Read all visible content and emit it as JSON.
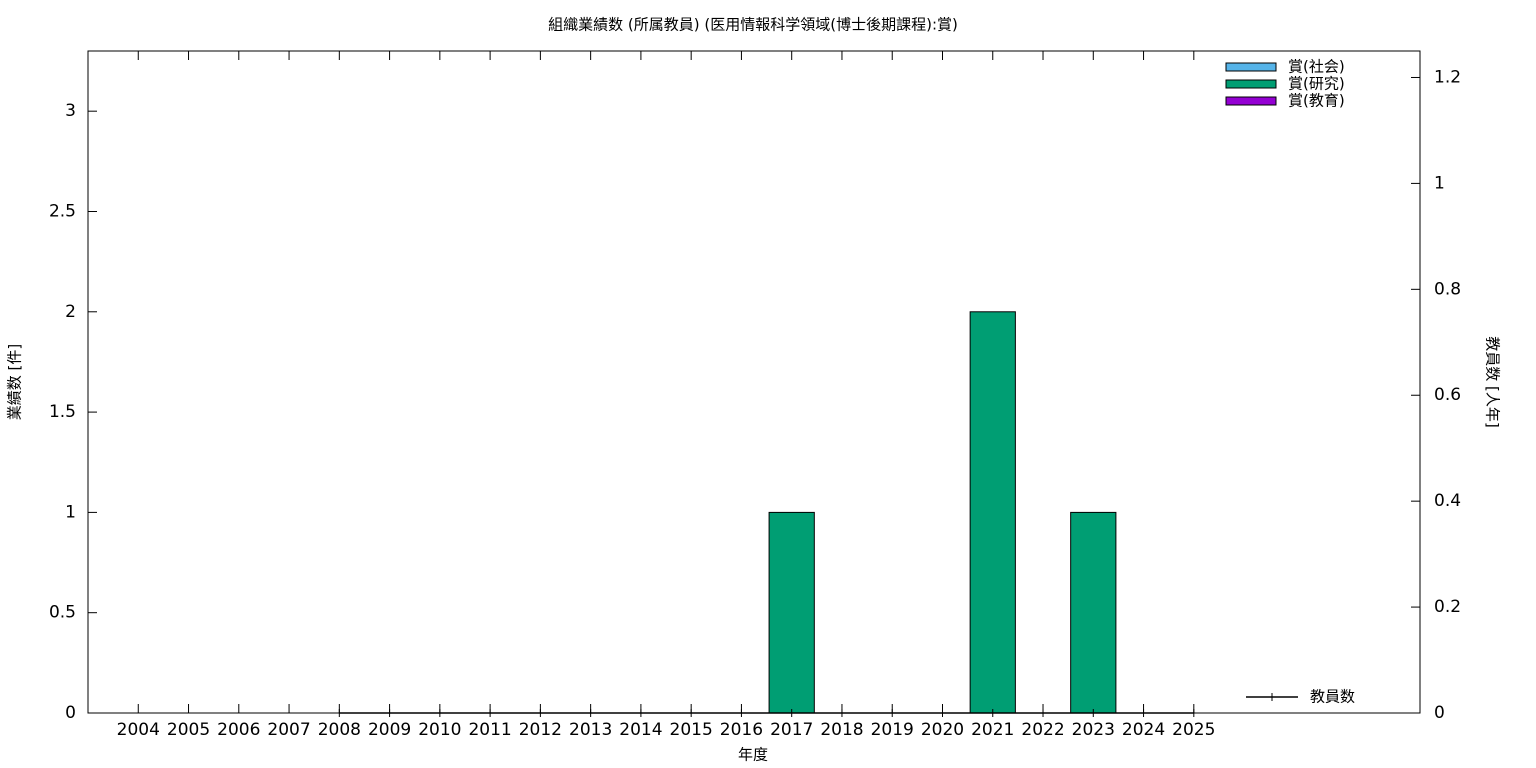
{
  "chart_data": {
    "type": "bar",
    "title": "組織業績数 (所属教員) (医用情報科学領域(博士後期課程):賞)",
    "x_label": "年度",
    "y_label": "業績数 [件]",
    "y2_label": "教員数 [人年]",
    "categories": [
      "2004",
      "2005",
      "2006",
      "2007",
      "2008",
      "2009",
      "2010",
      "2011",
      "2012",
      "2013",
      "2014",
      "2015",
      "2016",
      "2017",
      "2018",
      "2019",
      "2020",
      "2021",
      "2022",
      "2023",
      "2024",
      "2025"
    ],
    "stacked": true,
    "series": [
      {
        "name": "賞(社会)",
        "color": "#56b4e9",
        "values": [
          0,
          0,
          0,
          0,
          0,
          0,
          0,
          0,
          0,
          0,
          0,
          0,
          0,
          0,
          0,
          0,
          0,
          0,
          0,
          0,
          0,
          0
        ]
      },
      {
        "name": "賞(研究)",
        "color": "#009e73",
        "values": [
          0,
          0,
          0,
          0,
          0,
          0,
          0,
          0,
          0,
          0,
          0,
          0,
          0,
          1,
          0,
          0,
          0,
          2,
          0,
          1,
          0,
          0
        ]
      },
      {
        "name": "賞(教育)",
        "color": "#9400d3",
        "values": [
          0,
          0,
          0,
          0,
          0,
          0,
          0,
          0,
          0,
          0,
          0,
          0,
          0,
          0,
          0,
          0,
          0,
          0,
          0,
          0,
          0,
          0
        ]
      },
      {
        "name": "教員数",
        "type": "line",
        "axis": "y2",
        "color": "#000000",
        "values": [
          null,
          null,
          null,
          null,
          0,
          0,
          0,
          0,
          0,
          0,
          0,
          0,
          0,
          0,
          0,
          0,
          0,
          0,
          0,
          0,
          0,
          0
        ]
      }
    ],
    "ylim": [
      0,
      3.3
    ],
    "yticks": [
      0,
      0.5,
      1,
      1.5,
      2,
      2.5,
      3
    ],
    "y2lim": [
      0,
      1.25
    ],
    "y2ticks": [
      0,
      0.2,
      0.4,
      0.6,
      0.8,
      1,
      1.2
    ],
    "legend": "top-right"
  }
}
